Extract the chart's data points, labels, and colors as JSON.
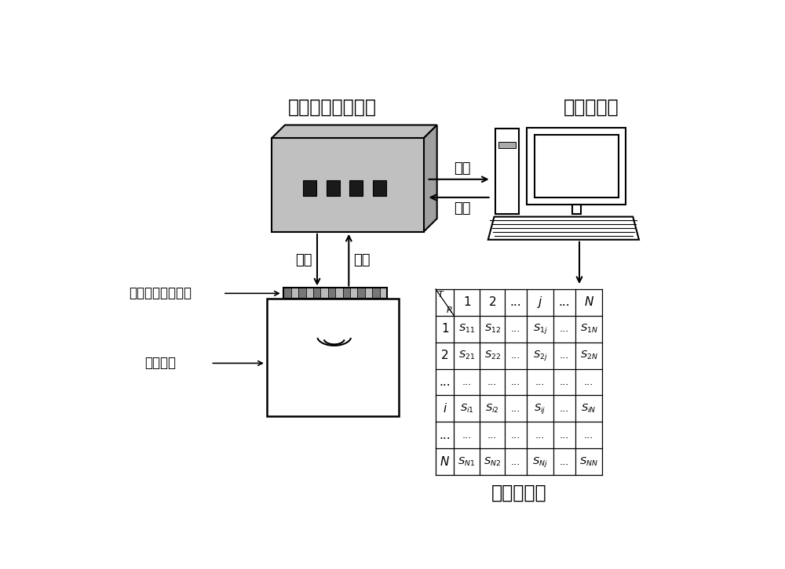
{
  "bg_color": "#ffffff",
  "text_color": "#000000",
  "label_ultrasonic": "超声激励接收板卡",
  "label_computer": "计算机终端",
  "label_acquire": "采集",
  "label_control": "控制",
  "label_trigger": "激发",
  "label_receive": "接收",
  "label_transducer": "相控阵超声换能器",
  "label_sample": "被测试样",
  "label_matrix": "全矩阵数据",
  "box_gray": "#c0c0c0",
  "box_side": "#a0a0a0"
}
